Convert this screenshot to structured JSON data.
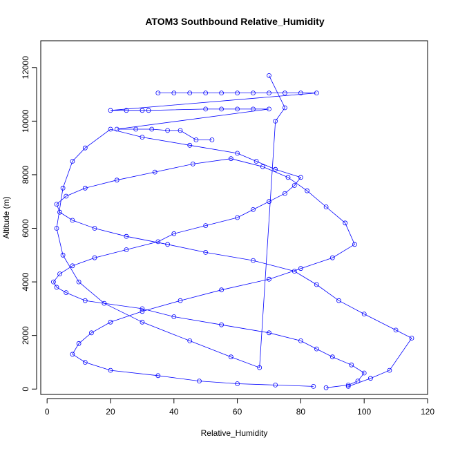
{
  "chart_data": {
    "type": "scatter",
    "title": "ATOM3 Southbound Relative_Humidity",
    "xlabel": "Relative_Humidity",
    "ylabel": "Altitude (m)",
    "xlim": [
      -2,
      120
    ],
    "ylim": [
      -200,
      13000
    ],
    "x_ticks": [
      0,
      20,
      40,
      60,
      80,
      100,
      120
    ],
    "y_ticks": [
      0,
      2000,
      4000,
      6000,
      8000,
      10000,
      12000
    ],
    "marker": "open-circle",
    "connected": true,
    "series_color": "#0000ff",
    "grid": false,
    "legend": "none",
    "series": [
      {
        "x": [
          88,
          95,
          98,
          100,
          96,
          90,
          85,
          80,
          70,
          55,
          40,
          30,
          12,
          6,
          3,
          2,
          4,
          8,
          15,
          25,
          35,
          40,
          50,
          60,
          65,
          70,
          75,
          78,
          80,
          72,
          66,
          60,
          45,
          30,
          20,
          12,
          8,
          5,
          3,
          5,
          10,
          18,
          30,
          45,
          58,
          67,
          72,
          75,
          70
        ],
        "y": [
          50,
          150,
          300,
          600,
          900,
          1200,
          1500,
          1800,
          2100,
          2400,
          2700,
          3000,
          3300,
          3600,
          3800,
          4000,
          4300,
          4600,
          4900,
          5200,
          5500,
          5800,
          6100,
          6400,
          6700,
          7000,
          7300,
          7600,
          7900,
          8200,
          8500,
          8800,
          9100,
          9400,
          9700,
          9000,
          8500,
          7500,
          6000,
          5000,
          4000,
          3200,
          2500,
          1800,
          1200,
          800,
          10000,
          10500,
          11700
        ]
      },
      {
        "x": [
          95,
          102,
          108,
          115,
          110,
          100,
          92,
          85,
          78,
          65,
          50,
          38,
          25,
          15,
          8,
          4,
          3,
          6,
          12,
          22,
          34,
          46,
          58,
          68,
          76,
          82,
          88,
          94,
          97,
          90,
          80,
          70,
          55,
          42,
          30,
          20,
          14,
          10,
          8,
          12,
          20,
          35,
          48,
          60,
          72,
          84
        ],
        "y": [
          100,
          400,
          700,
          1900,
          2200,
          2800,
          3300,
          3900,
          4400,
          4800,
          5100,
          5400,
          5700,
          6000,
          6300,
          6600,
          6900,
          7200,
          7500,
          7800,
          8100,
          8400,
          8600,
          8300,
          7900,
          7400,
          6800,
          6200,
          5400,
          4900,
          4500,
          4100,
          3700,
          3300,
          2900,
          2500,
          2100,
          1700,
          1300,
          1000,
          700,
          500,
          300,
          200,
          150,
          100
        ]
      },
      {
        "x": [
          35,
          40,
          45,
          50,
          55,
          60,
          65,
          70,
          75,
          80,
          85,
          20,
          25,
          30,
          32,
          50,
          55,
          60,
          65,
          70,
          22,
          28,
          33,
          38,
          42,
          47,
          52
        ],
        "y": [
          11050,
          11050,
          11050,
          11050,
          11050,
          11050,
          11050,
          11050,
          11050,
          11050,
          11050,
          10400,
          10400,
          10400,
          10400,
          10450,
          10450,
          10450,
          10450,
          10450,
          9700,
          9700,
          9700,
          9650,
          9650,
          9300,
          9300
        ]
      }
    ]
  }
}
